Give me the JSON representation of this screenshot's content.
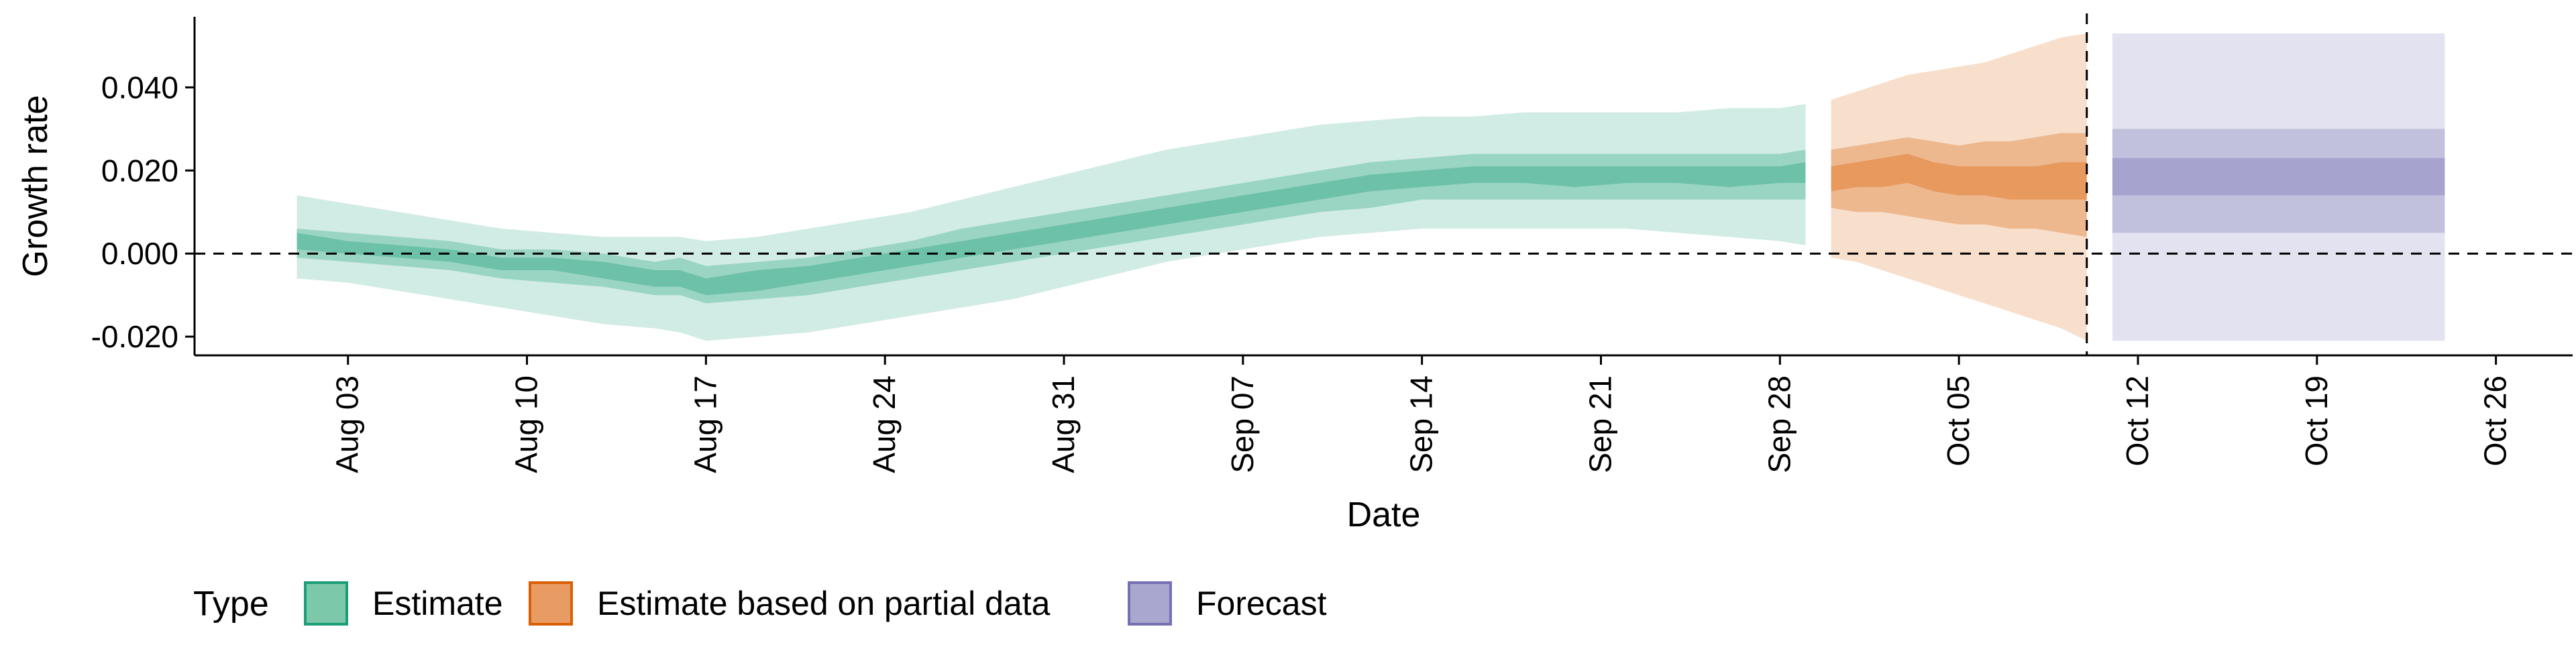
{
  "chart_data": {
    "type": "area",
    "xlabel": "Date",
    "ylabel": "Growth rate",
    "x_range": [
      "2020-07-28",
      "2020-10-29"
    ],
    "ylim": [
      -0.0245,
      0.057
    ],
    "x_ticks": [
      {
        "date": "2020-08-03",
        "label": "Aug 03"
      },
      {
        "date": "2020-08-10",
        "label": "Aug 10"
      },
      {
        "date": "2020-08-17",
        "label": "Aug 17"
      },
      {
        "date": "2020-08-24",
        "label": "Aug 24"
      },
      {
        "date": "2020-08-31",
        "label": "Aug 31"
      },
      {
        "date": "2020-09-07",
        "label": "Sep 07"
      },
      {
        "date": "2020-09-14",
        "label": "Sep 14"
      },
      {
        "date": "2020-09-21",
        "label": "Sep 21"
      },
      {
        "date": "2020-09-28",
        "label": "Sep 28"
      },
      {
        "date": "2020-10-05",
        "label": "Oct 05"
      },
      {
        "date": "2020-10-12",
        "label": "Oct 12"
      },
      {
        "date": "2020-10-19",
        "label": "Oct 19"
      },
      {
        "date": "2020-10-26",
        "label": "Oct 26"
      }
    ],
    "y_ticks": [
      {
        "value": -0.02,
        "label": "-0.020"
      },
      {
        "value": 0.0,
        "label": "0.000"
      },
      {
        "value": 0.02,
        "label": "0.020"
      },
      {
        "value": 0.04,
        "label": "0.040"
      }
    ],
    "reference_lines": {
      "horizontal_y": 0.0,
      "vertical_date": "2020-10-10"
    },
    "grid": false,
    "legend": {
      "position": "bottom-left",
      "title": "Type",
      "entries": [
        {
          "label": "Estimate",
          "fill": "#7bc8aa",
          "stroke": "#1b9e77"
        },
        {
          "label": "Estimate based on partial data",
          "fill": "#e99b64",
          "stroke": "#d95f02"
        },
        {
          "label": "Forecast",
          "fill": "#a9a6cf",
          "stroke": "#7570b3"
        }
      ]
    },
    "series": [
      {
        "name": "Estimate",
        "color": "#1b9e77",
        "band_opacity": [
          0.2,
          0.3,
          0.35
        ],
        "points": [
          {
            "date": "2020-08-01",
            "lower_90": -0.006,
            "lower_50": -0.001,
            "lower_20": 0.001,
            "upper_20": 0.005,
            "upper_50": 0.006,
            "upper_90": 0.014
          },
          {
            "date": "2020-08-03",
            "lower_90": -0.007,
            "lower_50": -0.002,
            "lower_20": 0.0,
            "upper_20": 0.003,
            "upper_50": 0.005,
            "upper_90": 0.012
          },
          {
            "date": "2020-08-05",
            "lower_90": -0.009,
            "lower_50": -0.003,
            "lower_20": -0.001,
            "upper_20": 0.002,
            "upper_50": 0.004,
            "upper_90": 0.01
          },
          {
            "date": "2020-08-07",
            "lower_90": -0.011,
            "lower_50": -0.004,
            "lower_20": -0.002,
            "upper_20": 0.001,
            "upper_50": 0.003,
            "upper_90": 0.008
          },
          {
            "date": "2020-08-09",
            "lower_90": -0.013,
            "lower_50": -0.006,
            "lower_20": -0.004,
            "upper_20": -0.001,
            "upper_50": 0.001,
            "upper_90": 0.006
          },
          {
            "date": "2020-08-11",
            "lower_90": -0.015,
            "lower_50": -0.007,
            "lower_20": -0.004,
            "upper_20": -0.001,
            "upper_50": 0.001,
            "upper_90": 0.005
          },
          {
            "date": "2020-08-13",
            "lower_90": -0.017,
            "lower_50": -0.008,
            "lower_20": -0.006,
            "upper_20": -0.002,
            "upper_50": 0.0,
            "upper_90": 0.004
          },
          {
            "date": "2020-08-15",
            "lower_90": -0.018,
            "lower_50": -0.01,
            "lower_20": -0.008,
            "upper_20": -0.004,
            "upper_50": -0.002,
            "upper_90": 0.004
          },
          {
            "date": "2020-08-16",
            "lower_90": -0.019,
            "lower_50": -0.01,
            "lower_20": -0.008,
            "upper_20": -0.004,
            "upper_50": -0.001,
            "upper_90": 0.004
          },
          {
            "date": "2020-08-17",
            "lower_90": -0.021,
            "lower_50": -0.012,
            "lower_20": -0.01,
            "upper_20": -0.006,
            "upper_50": -0.003,
            "upper_90": 0.003
          },
          {
            "date": "2020-08-19",
            "lower_90": -0.02,
            "lower_50": -0.011,
            "lower_20": -0.009,
            "upper_20": -0.004,
            "upper_50": -0.002,
            "upper_90": 0.004
          },
          {
            "date": "2020-08-21",
            "lower_90": -0.019,
            "lower_50": -0.01,
            "lower_20": -0.007,
            "upper_20": -0.003,
            "upper_50": -0.001,
            "upper_90": 0.006
          },
          {
            "date": "2020-08-23",
            "lower_90": -0.017,
            "lower_50": -0.008,
            "lower_20": -0.005,
            "upper_20": -0.001,
            "upper_50": 0.001,
            "upper_90": 0.008
          },
          {
            "date": "2020-08-25",
            "lower_90": -0.015,
            "lower_50": -0.006,
            "lower_20": -0.003,
            "upper_20": 0.001,
            "upper_50": 0.003,
            "upper_90": 0.01
          },
          {
            "date": "2020-08-27",
            "lower_90": -0.013,
            "lower_50": -0.004,
            "lower_20": -0.001,
            "upper_20": 0.003,
            "upper_50": 0.006,
            "upper_90": 0.013
          },
          {
            "date": "2020-08-29",
            "lower_90": -0.011,
            "lower_50": -0.002,
            "lower_20": 0.001,
            "upper_20": 0.005,
            "upper_50": 0.008,
            "upper_90": 0.016
          },
          {
            "date": "2020-08-31",
            "lower_90": -0.008,
            "lower_50": 0.0,
            "lower_20": 0.003,
            "upper_20": 0.007,
            "upper_50": 0.01,
            "upper_90": 0.019
          },
          {
            "date": "2020-09-02",
            "lower_90": -0.005,
            "lower_50": 0.002,
            "lower_20": 0.005,
            "upper_20": 0.009,
            "upper_50": 0.012,
            "upper_90": 0.022
          },
          {
            "date": "2020-09-04",
            "lower_90": -0.002,
            "lower_50": 0.004,
            "lower_20": 0.007,
            "upper_20": 0.011,
            "upper_50": 0.014,
            "upper_90": 0.025
          },
          {
            "date": "2020-09-06",
            "lower_90": 0.0,
            "lower_50": 0.006,
            "lower_20": 0.009,
            "upper_20": 0.013,
            "upper_50": 0.016,
            "upper_90": 0.027
          },
          {
            "date": "2020-09-08",
            "lower_90": 0.002,
            "lower_50": 0.008,
            "lower_20": 0.011,
            "upper_20": 0.015,
            "upper_50": 0.018,
            "upper_90": 0.029
          },
          {
            "date": "2020-09-10",
            "lower_90": 0.004,
            "lower_50": 0.01,
            "lower_20": 0.013,
            "upper_20": 0.017,
            "upper_50": 0.02,
            "upper_90": 0.031
          },
          {
            "date": "2020-09-12",
            "lower_90": 0.005,
            "lower_50": 0.011,
            "lower_20": 0.015,
            "upper_20": 0.019,
            "upper_50": 0.022,
            "upper_90": 0.032
          },
          {
            "date": "2020-09-14",
            "lower_90": 0.006,
            "lower_50": 0.013,
            "lower_20": 0.016,
            "upper_20": 0.02,
            "upper_50": 0.023,
            "upper_90": 0.033
          },
          {
            "date": "2020-09-16",
            "lower_90": 0.006,
            "lower_50": 0.013,
            "lower_20": 0.017,
            "upper_20": 0.021,
            "upper_50": 0.024,
            "upper_90": 0.033
          },
          {
            "date": "2020-09-18",
            "lower_90": 0.006,
            "lower_50": 0.013,
            "lower_20": 0.017,
            "upper_20": 0.021,
            "upper_50": 0.024,
            "upper_90": 0.034
          },
          {
            "date": "2020-09-20",
            "lower_90": 0.006,
            "lower_50": 0.013,
            "lower_20": 0.016,
            "upper_20": 0.021,
            "upper_50": 0.024,
            "upper_90": 0.034
          },
          {
            "date": "2020-09-22",
            "lower_90": 0.006,
            "lower_50": 0.013,
            "lower_20": 0.017,
            "upper_20": 0.021,
            "upper_50": 0.024,
            "upper_90": 0.034
          },
          {
            "date": "2020-09-24",
            "lower_90": 0.005,
            "lower_50": 0.013,
            "lower_20": 0.017,
            "upper_20": 0.021,
            "upper_50": 0.024,
            "upper_90": 0.034
          },
          {
            "date": "2020-09-26",
            "lower_90": 0.004,
            "lower_50": 0.013,
            "lower_20": 0.016,
            "upper_20": 0.021,
            "upper_50": 0.024,
            "upper_90": 0.035
          },
          {
            "date": "2020-09-28",
            "lower_90": 0.003,
            "lower_50": 0.013,
            "lower_20": 0.017,
            "upper_20": 0.021,
            "upper_50": 0.024,
            "upper_90": 0.035
          },
          {
            "date": "2020-09-29",
            "lower_90": 0.002,
            "lower_50": 0.013,
            "lower_20": 0.017,
            "upper_20": 0.022,
            "upper_50": 0.025,
            "upper_90": 0.036
          }
        ]
      },
      {
        "name": "Estimate based on partial data",
        "color": "#d95f02",
        "band_opacity": [
          0.2,
          0.3,
          0.35
        ],
        "points": [
          {
            "date": "2020-09-30",
            "lower_90": -0.001,
            "lower_50": 0.011,
            "lower_20": 0.015,
            "upper_20": 0.021,
            "upper_50": 0.025,
            "upper_90": 0.037
          },
          {
            "date": "2020-10-01",
            "lower_90": -0.002,
            "lower_50": 0.01,
            "lower_20": 0.016,
            "upper_20": 0.022,
            "upper_50": 0.026,
            "upper_90": 0.039
          },
          {
            "date": "2020-10-02",
            "lower_90": -0.004,
            "lower_50": 0.01,
            "lower_20": 0.016,
            "upper_20": 0.023,
            "upper_50": 0.027,
            "upper_90": 0.041
          },
          {
            "date": "2020-10-03",
            "lower_90": -0.006,
            "lower_50": 0.009,
            "lower_20": 0.017,
            "upper_20": 0.024,
            "upper_50": 0.028,
            "upper_90": 0.043
          },
          {
            "date": "2020-10-04",
            "lower_90": -0.008,
            "lower_50": 0.008,
            "lower_20": 0.015,
            "upper_20": 0.022,
            "upper_50": 0.027,
            "upper_90": 0.044
          },
          {
            "date": "2020-10-05",
            "lower_90": -0.01,
            "lower_50": 0.007,
            "lower_20": 0.014,
            "upper_20": 0.021,
            "upper_50": 0.026,
            "upper_90": 0.045
          },
          {
            "date": "2020-10-06",
            "lower_90": -0.012,
            "lower_50": 0.007,
            "lower_20": 0.014,
            "upper_20": 0.021,
            "upper_50": 0.027,
            "upper_90": 0.046
          },
          {
            "date": "2020-10-07",
            "lower_90": -0.014,
            "lower_50": 0.006,
            "lower_20": 0.013,
            "upper_20": 0.021,
            "upper_50": 0.027,
            "upper_90": 0.048
          },
          {
            "date": "2020-10-08",
            "lower_90": -0.016,
            "lower_50": 0.006,
            "lower_20": 0.013,
            "upper_20": 0.021,
            "upper_50": 0.028,
            "upper_90": 0.05
          },
          {
            "date": "2020-10-09",
            "lower_90": -0.018,
            "lower_50": 0.005,
            "lower_20": 0.013,
            "upper_20": 0.022,
            "upper_50": 0.029,
            "upper_90": 0.052
          },
          {
            "date": "2020-10-10",
            "lower_90": -0.021,
            "lower_50": 0.004,
            "lower_20": 0.013,
            "upper_20": 0.022,
            "upper_50": 0.029,
            "upper_90": 0.053
          }
        ]
      },
      {
        "name": "Forecast",
        "color": "#7570b3",
        "band_opacity": [
          0.2,
          0.3,
          0.35
        ],
        "points": [
          {
            "date": "2020-10-11",
            "lower_90": -0.021,
            "lower_50": 0.005,
            "lower_20": 0.014,
            "upper_20": 0.023,
            "upper_50": 0.03,
            "upper_90": 0.053
          },
          {
            "date": "2020-10-24",
            "lower_90": -0.021,
            "lower_50": 0.005,
            "lower_20": 0.014,
            "upper_20": 0.023,
            "upper_50": 0.03,
            "upper_90": 0.053
          }
        ]
      }
    ]
  }
}
